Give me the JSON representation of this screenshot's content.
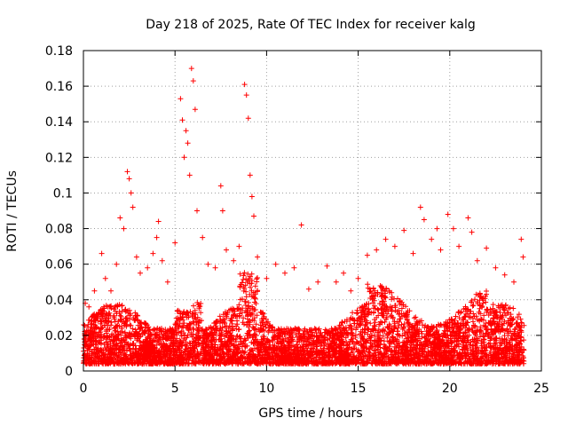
{
  "chart_data": {
    "type": "scatter",
    "title": "Day 218 of 2025, Rate Of TEC Index for receiver kalg",
    "xlabel": "GPS time / hours",
    "ylabel": "ROTI / TECUs",
    "xlim": [
      0,
      25
    ],
    "ylim": [
      0,
      0.18
    ],
    "x_ticks": [
      "0",
      "5",
      "10",
      "15",
      "20",
      "25"
    ],
    "y_ticks": [
      "0",
      "0.02",
      "0.04",
      "0.06",
      "0.08",
      "0.1",
      "0.12",
      "0.14",
      "0.16",
      "0.18"
    ],
    "grid": true,
    "marker": "+",
    "colors": {
      "series": "#ff0000"
    },
    "series": [
      {
        "values": [
          [
            0.1,
            0.038
          ],
          [
            0.3,
            0.036
          ],
          [
            0.6,
            0.045
          ],
          [
            1.0,
            0.066
          ],
          [
            1.2,
            0.052
          ],
          [
            1.5,
            0.045
          ],
          [
            1.8,
            0.06
          ],
          [
            2.0,
            0.086
          ],
          [
            2.2,
            0.08
          ],
          [
            2.4,
            0.112
          ],
          [
            2.5,
            0.108
          ],
          [
            2.6,
            0.1
          ],
          [
            2.7,
            0.092
          ],
          [
            2.9,
            0.064
          ],
          [
            3.1,
            0.055
          ],
          [
            3.5,
            0.058
          ],
          [
            3.8,
            0.066
          ],
          [
            4.0,
            0.075
          ],
          [
            4.1,
            0.084
          ],
          [
            4.3,
            0.062
          ],
          [
            4.6,
            0.05
          ],
          [
            5.0,
            0.072
          ],
          [
            5.3,
            0.153
          ],
          [
            5.4,
            0.141
          ],
          [
            5.5,
            0.12
          ],
          [
            5.6,
            0.135
          ],
          [
            5.7,
            0.128
          ],
          [
            5.8,
            0.11
          ],
          [
            5.9,
            0.17
          ],
          [
            6.0,
            0.163
          ],
          [
            6.1,
            0.147
          ],
          [
            6.2,
            0.09
          ],
          [
            6.5,
            0.075
          ],
          [
            6.8,
            0.06
          ],
          [
            7.2,
            0.058
          ],
          [
            7.5,
            0.104
          ],
          [
            7.6,
            0.09
          ],
          [
            7.8,
            0.068
          ],
          [
            8.2,
            0.062
          ],
          [
            8.5,
            0.07
          ],
          [
            8.8,
            0.161
          ],
          [
            8.9,
            0.155
          ],
          [
            9.0,
            0.142
          ],
          [
            9.1,
            0.11
          ],
          [
            9.2,
            0.098
          ],
          [
            9.3,
            0.087
          ],
          [
            9.5,
            0.064
          ],
          [
            10.0,
            0.052
          ],
          [
            10.5,
            0.06
          ],
          [
            11.0,
            0.055
          ],
          [
            11.5,
            0.058
          ],
          [
            11.9,
            0.082
          ],
          [
            12.3,
            0.046
          ],
          [
            12.8,
            0.05
          ],
          [
            13.3,
            0.059
          ],
          [
            13.8,
            0.05
          ],
          [
            14.2,
            0.055
          ],
          [
            14.6,
            0.045
          ],
          [
            15.0,
            0.052
          ],
          [
            15.5,
            0.065
          ],
          [
            16.0,
            0.068
          ],
          [
            16.5,
            0.074
          ],
          [
            17.0,
            0.07
          ],
          [
            17.5,
            0.079
          ],
          [
            18.0,
            0.066
          ],
          [
            18.4,
            0.092
          ],
          [
            18.6,
            0.085
          ],
          [
            19.0,
            0.074
          ],
          [
            19.3,
            0.08
          ],
          [
            19.5,
            0.068
          ],
          [
            19.9,
            0.088
          ],
          [
            20.2,
            0.08
          ],
          [
            20.5,
            0.07
          ],
          [
            21.0,
            0.086
          ],
          [
            21.2,
            0.078
          ],
          [
            21.5,
            0.062
          ],
          [
            22.0,
            0.069
          ],
          [
            22.5,
            0.058
          ],
          [
            23.0,
            0.054
          ],
          [
            23.5,
            0.05
          ],
          [
            23.9,
            0.074
          ],
          [
            24.0,
            0.064
          ]
        ]
      }
    ]
  }
}
